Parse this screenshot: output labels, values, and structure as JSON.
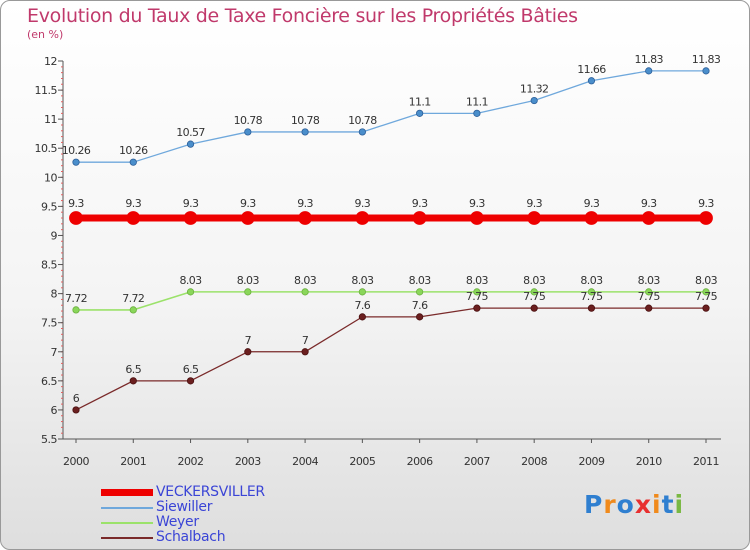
{
  "chart_data": {
    "type": "line",
    "title": "Evolution du Taux de Taxe Foncière sur les Propriétés Bâties",
    "subtitle": "(en %)",
    "xlabel": "",
    "ylabel": "",
    "categories": [
      "2000",
      "2001",
      "2002",
      "2003",
      "2004",
      "2005",
      "2006",
      "2007",
      "2008",
      "2009",
      "2010",
      "2011"
    ],
    "ylim": [
      5.5,
      12
    ],
    "yticks": [
      "5.5",
      "6",
      "6.5",
      "7",
      "7.5",
      "8",
      "8.5",
      "9",
      "9.5",
      "10",
      "10.5",
      "11",
      "11.5",
      "12"
    ],
    "grid": false,
    "legend_position": "bottom-left",
    "series": [
      {
        "name": "VECKERSVILLER",
        "color": "#ee0000",
        "values": [
          9.3,
          9.3,
          9.3,
          9.3,
          9.3,
          9.3,
          9.3,
          9.3,
          9.3,
          9.3,
          9.3,
          9.3
        ],
        "labels": [
          "9.3",
          "9.3",
          "9.3",
          "9.3",
          "9.3",
          "9.3",
          "9.3",
          "9.3",
          "9.3",
          "9.3",
          "9.3",
          "9.3"
        ]
      },
      {
        "name": "Siewiller",
        "color": "#6fa8dc",
        "values": [
          10.26,
          10.26,
          10.57,
          10.78,
          10.78,
          10.78,
          11.1,
          11.1,
          11.32,
          11.66,
          11.83,
          11.83
        ],
        "labels": [
          "10.26",
          "10.26",
          "10.57",
          "10.78",
          "10.78",
          "10.78",
          "11.1",
          "11.1",
          "11.32",
          "11.66",
          "11.83",
          "11.83"
        ]
      },
      {
        "name": "Weyer",
        "color": "#9be26a",
        "values": [
          7.72,
          7.72,
          8.03,
          8.03,
          8.03,
          8.03,
          8.03,
          8.03,
          8.03,
          8.03,
          8.03,
          8.03
        ],
        "labels": [
          "7.72",
          "7.72",
          "8.03",
          "8.03",
          "8.03",
          "8.03",
          "8.03",
          "8.03",
          "8.03",
          "8.03",
          "8.03",
          "8.03"
        ]
      },
      {
        "name": "Schalbach",
        "color": "#7a2a2a",
        "values": [
          6,
          6.5,
          6.5,
          7,
          7,
          7.6,
          7.6,
          7.75,
          7.75,
          7.75,
          7.75,
          7.75
        ],
        "labels": [
          "6",
          "6.5",
          "6.5",
          "7",
          "7",
          "7.6",
          "7.6",
          "7.75",
          "7.75",
          "7.75",
          "7.75",
          "7.75"
        ]
      }
    ]
  },
  "logo": {
    "letters": [
      "P",
      "r",
      "o",
      "x",
      "i",
      "t",
      "i"
    ],
    "colors": [
      "#2f7fd0",
      "#f08a1c",
      "#2f7fd0",
      "#e83030",
      "#f08a1c",
      "#2f7fd0",
      "#79b842"
    ]
  }
}
